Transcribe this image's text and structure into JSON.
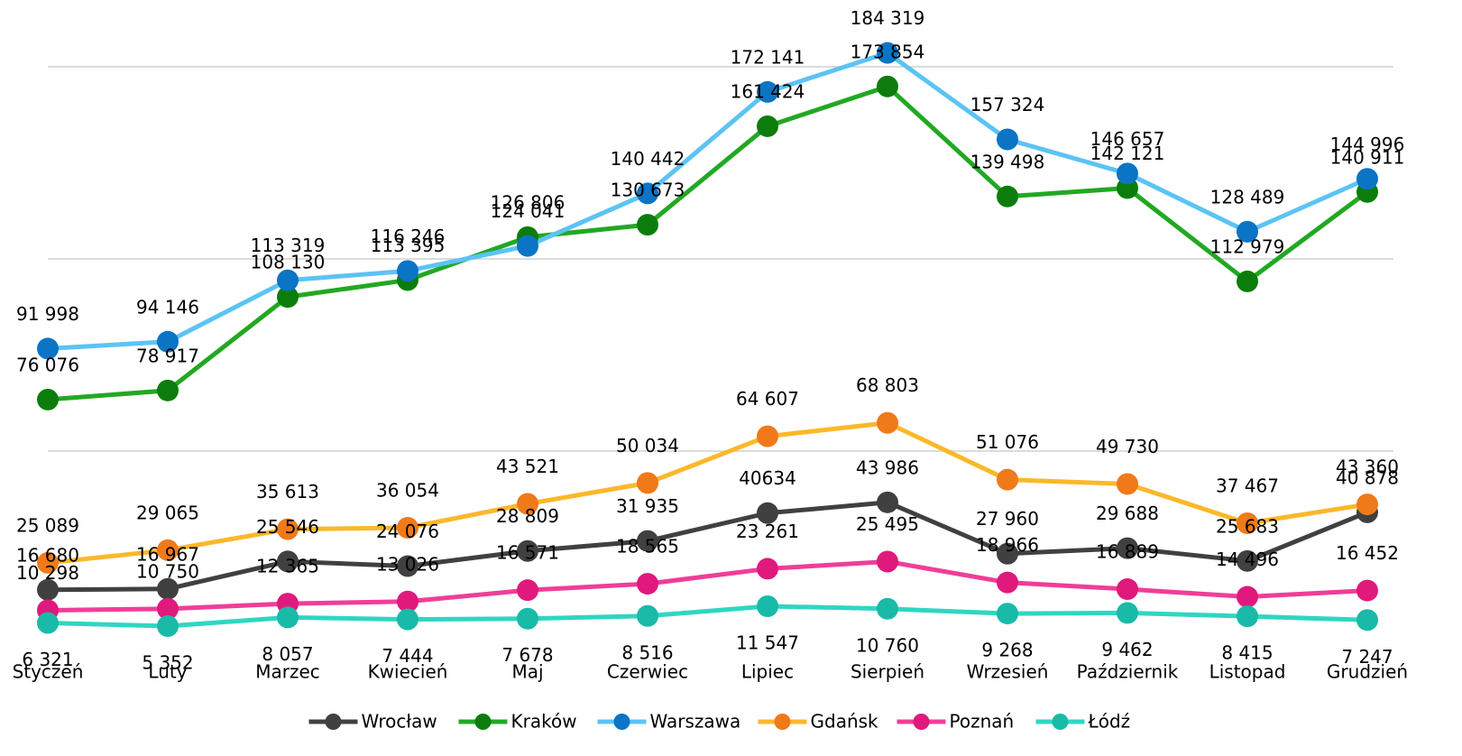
{
  "chart_data": {
    "type": "line",
    "categories": [
      "Styczeń",
      "Luty",
      "Marzec",
      "Kwiecień",
      "Maj",
      "Czerwiec",
      "Lipiec",
      "Sierpień",
      "Wrzesień",
      "Październik",
      "Listopad",
      "Grudzień"
    ],
    "ylim": [
      0,
      200000
    ],
    "yticks": [
      60000,
      120000,
      180000
    ],
    "grid": true,
    "legend": "bottom",
    "series": [
      {
        "name": "Wrocław",
        "color": "#404040",
        "marker_color": "#404040",
        "values": [
          16680,
          16967,
          25546,
          24076,
          28809,
          31935,
          40634,
          43986,
          27960,
          29688,
          25683,
          40878
        ],
        "value_labels": [
          "16 680",
          "16 967",
          "25 546",
          "24 076",
          "28 809",
          "31 935",
          "40634",
          "43 986",
          "27 960",
          "29 688",
          "25 683",
          "40 878"
        ]
      },
      {
        "name": "Kraków",
        "color": "#22a822",
        "marker_color": "#0c7d0c",
        "values": [
          76076,
          78917,
          108130,
          113395,
          126806,
          130673,
          161424,
          173854,
          139498,
          142121,
          112979,
          140911
        ],
        "value_labels": [
          "76 076",
          "78 917",
          "108 130",
          "113 395",
          "126 806",
          "130 673",
          "161 424",
          "173 854",
          "139 498",
          "142 121",
          "112 979",
          "140 911"
        ]
      },
      {
        "name": "Warszawa",
        "color": "#5cc3f5",
        "marker_color": "#0b74c4",
        "values": [
          91998,
          94146,
          113319,
          116246,
          124041,
          140442,
          172141,
          184319,
          157324,
          146657,
          128489,
          144996
        ],
        "value_labels": [
          "91 998",
          "94 146",
          "113 319",
          "116 246",
          "124 041",
          "140 442",
          "172 141",
          "184 319",
          "157 324",
          "146 657",
          "128 489",
          "144 996"
        ]
      },
      {
        "name": "Gdańsk",
        "color": "#fbb82a",
        "marker_color": "#f07a1a",
        "values": [
          25089,
          29065,
          35613,
          36054,
          43521,
          50034,
          64607,
          68803,
          51076,
          49730,
          37467,
          43360
        ],
        "value_labels": [
          "25 089",
          "29 065",
          "35 613",
          "36 054",
          "43 521",
          "50 034",
          "64 607",
          "68 803",
          "51 076",
          "49 730",
          "37 467",
          "43 360"
        ]
      },
      {
        "name": "Poznań",
        "color": "#ef3e98",
        "marker_color": "#e0197d",
        "values": [
          10298,
          10750,
          12365,
          13026,
          16571,
          18565,
          23261,
          25495,
          18966,
          16889,
          14496,
          16452
        ],
        "value_labels": [
          "10 298",
          "10 750",
          "12 365",
          "13 026",
          "16 571",
          "18 565",
          "23 261",
          "25 495",
          "18 966",
          "16 889",
          "14 496",
          "16 452"
        ]
      },
      {
        "name": "Łódź",
        "color": "#2fd6c2",
        "marker_color": "#19baa8",
        "values": [
          6321,
          5352,
          8057,
          7444,
          7678,
          8516,
          11547,
          10760,
          9268,
          9462,
          8415,
          7247
        ],
        "value_labels": [
          "6 321",
          "5 352",
          "8 057",
          "7 444",
          "7 678",
          "8 516",
          "11 547",
          "10 760",
          "9 268",
          "9 462",
          "8 415",
          "7 247"
        ]
      }
    ]
  }
}
